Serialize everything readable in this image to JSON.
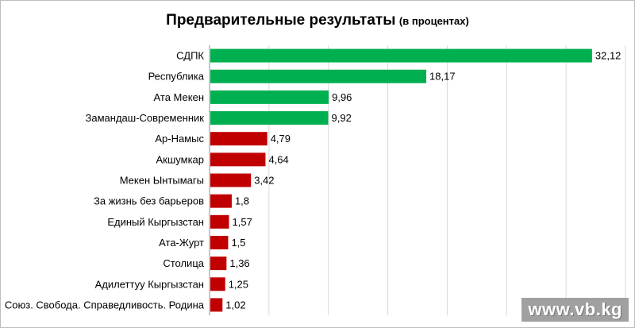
{
  "chart_data": {
    "type": "bar",
    "orientation": "horizontal",
    "title": "Предварительные результаты",
    "subtitle": "(в процентах)",
    "categories": [
      "СДПК",
      "Республика",
      "Ата Мекен",
      "Замандаш-Современник",
      "Ар-Намыс",
      "Акшумкар",
      "Мекен Ынтымагы",
      "За жизнь без барьеров",
      "Единый Кыргызстан",
      "Ата-Журт",
      "Столица",
      "Адилеттуу Кыргызстан",
      "Союз. Свобода. Справедливость. Родина"
    ],
    "values": [
      32.12,
      18.17,
      9.96,
      9.92,
      4.79,
      4.64,
      3.42,
      1.8,
      1.57,
      1.5,
      1.36,
      1.25,
      1.02
    ],
    "value_labels": [
      "32,12",
      "18,17",
      "9,96",
      "9,92",
      "4,79",
      "4,64",
      "3,42",
      "1,8",
      "1,57",
      "1,5",
      "1,36",
      "1,25",
      "1,02"
    ],
    "xlim": [
      0,
      35
    ],
    "grid": "vertical",
    "colors": {
      "green": "#00b050",
      "red": "#c00000",
      "grid": "#d9d9d9"
    },
    "series_colors": [
      "green",
      "green",
      "green",
      "green",
      "red",
      "red",
      "red",
      "red",
      "red",
      "red",
      "red",
      "red",
      "red"
    ]
  },
  "watermark": "www.vb.kg"
}
